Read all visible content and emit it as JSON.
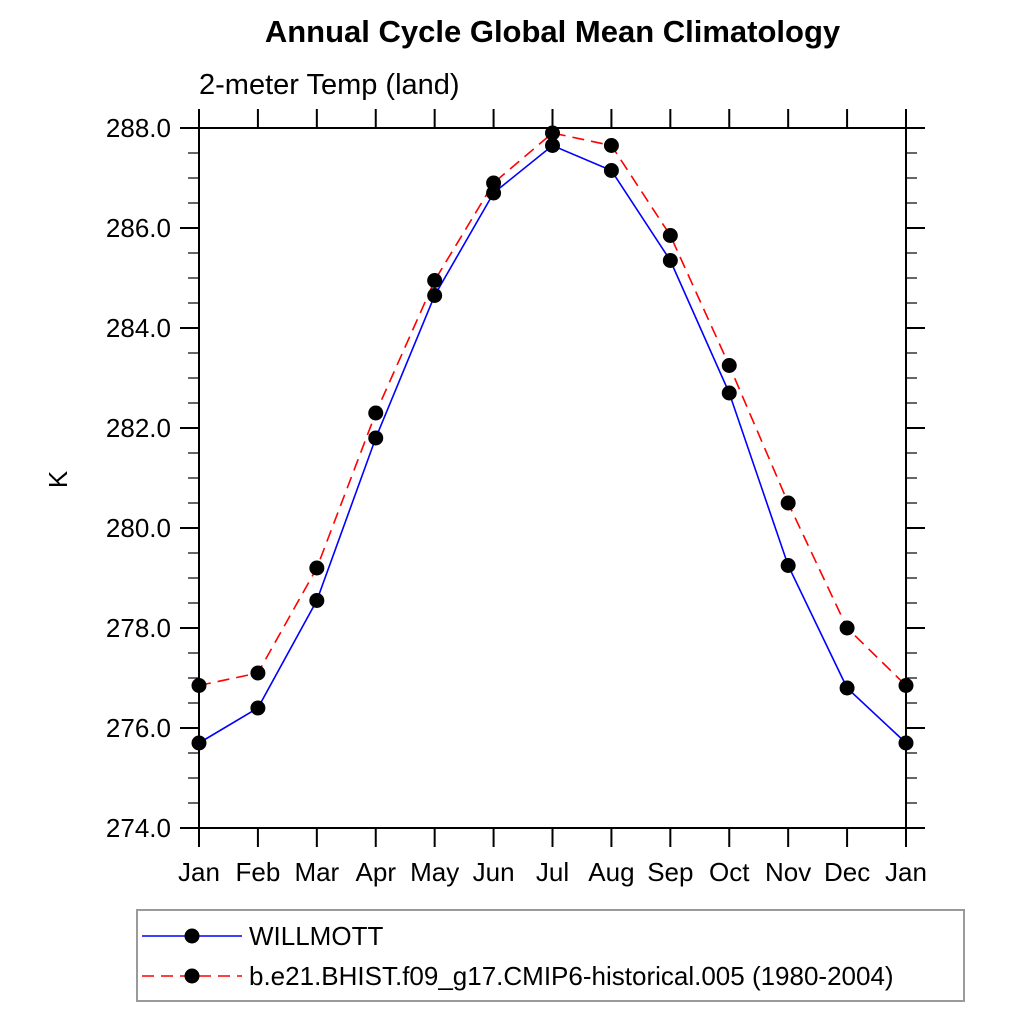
{
  "chart_data": {
    "type": "line",
    "title": "Annual Cycle Global Mean Climatology",
    "subtitle": "2-meter Temp (land)",
    "xlabel": "",
    "ylabel": "K",
    "ylim": [
      274.0,
      288.0
    ],
    "y_major_step": 2.0,
    "y_minor_step": 0.5,
    "y_tick_labels": [
      "274.0",
      "276.0",
      "278.0",
      "280.0",
      "282.0",
      "284.0",
      "286.0",
      "288.0"
    ],
    "categories": [
      "Jan",
      "Feb",
      "Mar",
      "Apr",
      "May",
      "Jun",
      "Jul",
      "Aug",
      "Sep",
      "Oct",
      "Nov",
      "Dec",
      "Jan"
    ],
    "grid": false,
    "legend_position": "bottom-left",
    "marker_color": "#000000",
    "axis_color": "#000000",
    "series": [
      {
        "name": "WILLMOTT",
        "color": "#0000ff",
        "style": "solid",
        "marker": "filled-circle",
        "values": [
          275.7,
          276.4,
          278.55,
          281.8,
          284.65,
          286.7,
          287.65,
          287.15,
          285.35,
          282.7,
          279.25,
          276.8,
          275.7
        ]
      },
      {
        "name": "b.e21.BHIST.f09_g17.CMIP6-historical.005 (1980-2004)",
        "color": "#ff0000",
        "style": "dashed",
        "marker": "filled-circle",
        "values": [
          276.85,
          277.1,
          279.2,
          282.3,
          284.95,
          286.9,
          287.9,
          287.65,
          285.85,
          283.25,
          280.5,
          278.0,
          276.85
        ]
      }
    ]
  }
}
